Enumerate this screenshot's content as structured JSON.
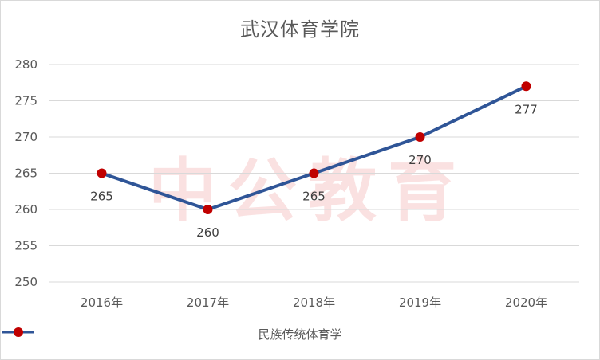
{
  "watermark": "中公教育",
  "chart_data": {
    "type": "line",
    "title": "武汉体育学院",
    "categories": [
      "2016年",
      "2017年",
      "2018年",
      "2019年",
      "2020年"
    ],
    "series": [
      {
        "name": "民族传统体育学",
        "values": [
          265,
          260,
          265,
          270,
          277
        ]
      }
    ],
    "ylim": [
      250,
      280
    ],
    "yticks": [
      250,
      255,
      260,
      265,
      270,
      275,
      280
    ],
    "data_labels": [
      "265",
      "260",
      "265",
      "270",
      "277"
    ],
    "grid": true,
    "legend_position": "bottom",
    "colors": {
      "line": "#2f5597",
      "marker": "#c00000",
      "grid": "#d9d9d9",
      "text": "#595959"
    }
  }
}
